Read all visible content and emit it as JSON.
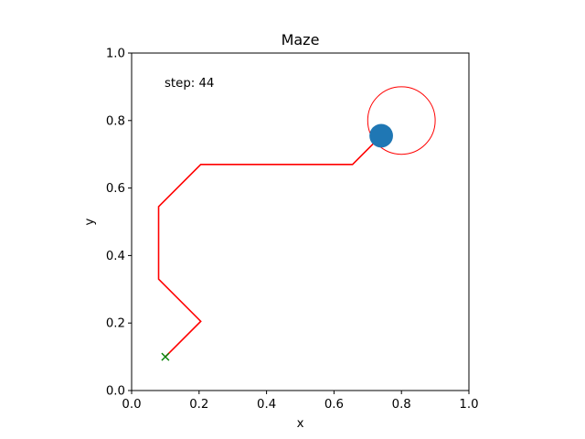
{
  "chart_data": {
    "type": "line",
    "title": "Maze",
    "xlabel": "x",
    "ylabel": "y",
    "xlim": [
      0.0,
      1.0
    ],
    "ylim": [
      0.0,
      1.0
    ],
    "xticks": [
      "0.0",
      "0.2",
      "0.4",
      "0.6",
      "0.8",
      "1.0"
    ],
    "yticks": [
      "0.0",
      "0.2",
      "0.4",
      "0.6",
      "0.8",
      "1.0"
    ],
    "grid": false,
    "annotation": "step: 44",
    "path": {
      "color": "#ff0000",
      "x": [
        0.1,
        0.205,
        0.08,
        0.08,
        0.205,
        0.655,
        0.74
      ],
      "y": [
        0.1,
        0.205,
        0.33,
        0.545,
        0.67,
        0.67,
        0.755
      ]
    },
    "start": {
      "x": 0.1,
      "y": 0.1,
      "color": "#008000",
      "marker": "x"
    },
    "agent": {
      "x": 0.74,
      "y": 0.755,
      "color": "#1f77b4",
      "radius": 0.035
    },
    "goal": {
      "x": 0.8,
      "y": 0.8,
      "color": "#ff0000",
      "radius": 0.1
    }
  }
}
